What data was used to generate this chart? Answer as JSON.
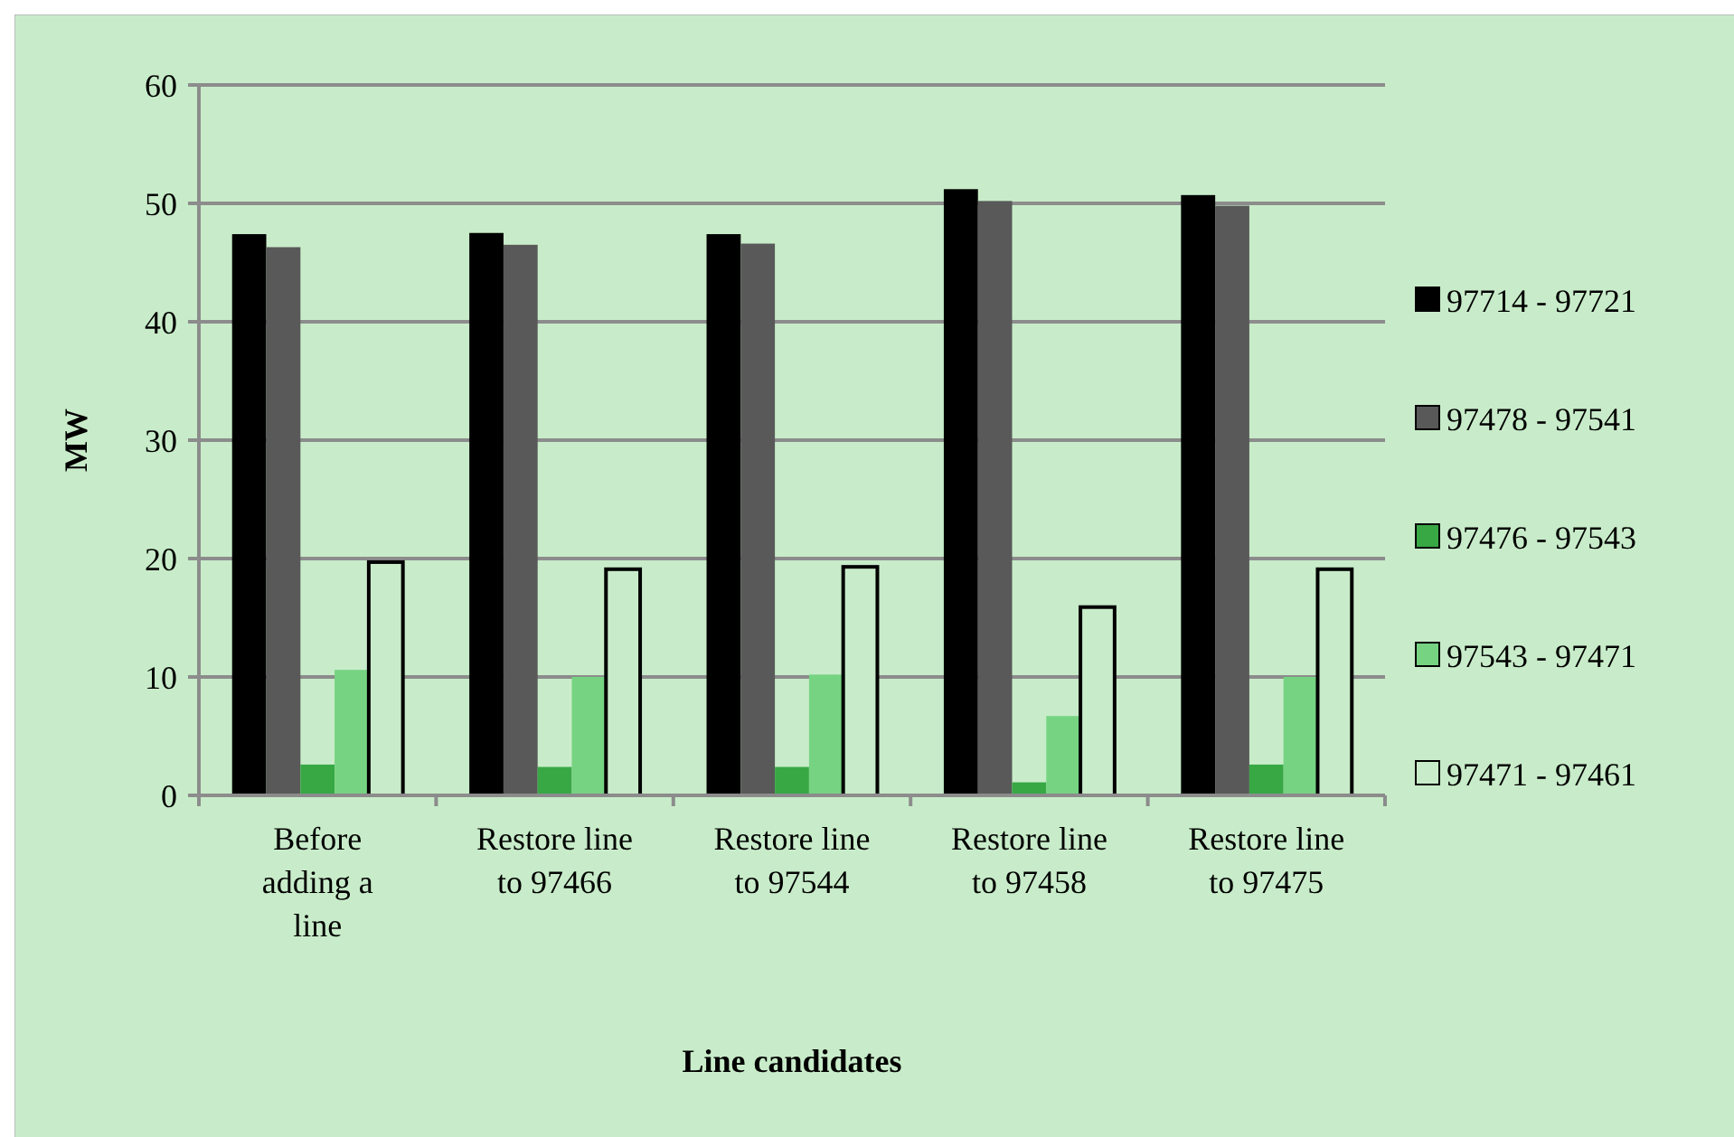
{
  "chart_data": {
    "type": "bar",
    "xlabel": "Line candidates",
    "ylabel": "MW",
    "categories": [
      "Before adding a line",
      "Restore line to 97466",
      "Restore line to 97544",
      "Restore line to 97458",
      "Restore line to 97475"
    ],
    "series": [
      {
        "name": "97714 - 97721",
        "color": "#000000",
        "values": [
          47.4,
          47.5,
          47.4,
          51.2,
          50.7
        ]
      },
      {
        "name": "97478 - 97541",
        "color": "#595959",
        "values": [
          46.3,
          46.5,
          46.6,
          50.2,
          49.8
        ]
      },
      {
        "name": "97476 - 97543",
        "color": "#38a845",
        "values": [
          2.6,
          2.4,
          2.4,
          1.1,
          2.6
        ]
      },
      {
        "name": "97543 - 97471",
        "color": "#76d382",
        "values": [
          10.6,
          10.0,
          10.2,
          6.7,
          10.0
        ]
      },
      {
        "name": "97471 - 97461",
        "color": "#c8ecc9",
        "values": [
          19.7,
          19.1,
          19.3,
          15.9,
          19.1
        ]
      }
    ],
    "ylim": [
      0,
      60
    ],
    "yticks": [
      0,
      10,
      20,
      30,
      40,
      50,
      60
    ],
    "grid": "y",
    "legend": "right"
  }
}
